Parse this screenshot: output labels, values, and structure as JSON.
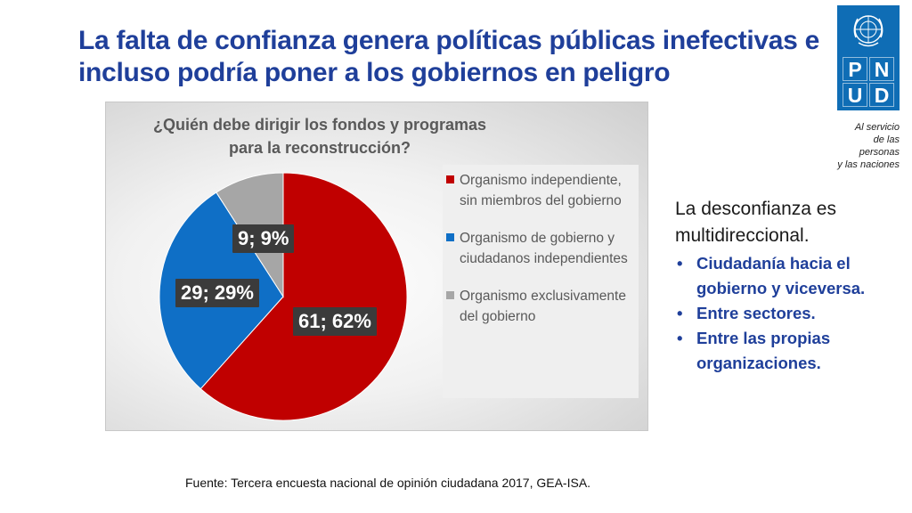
{
  "slide": {
    "title": "La falta de confianza genera políticas públicas inefectivas e incluso podría poner a los gobiernos en peligro"
  },
  "logo": {
    "letters": [
      "P",
      "N",
      "U",
      "D"
    ],
    "tagline": "Al servicio\nde las personas\ny las naciones",
    "emblem_icon": "un-emblem-icon",
    "brand_color": "#0f6db5"
  },
  "chart_data": {
    "type": "pie",
    "title": "¿Quién debe dirigir los fondos y programas para la reconstrucción?",
    "slices": [
      {
        "label": "Organismo independiente, sin miembros del gobierno",
        "value": 61,
        "percent": 62,
        "data_label": "61; 62%",
        "color": "#c00000"
      },
      {
        "label": "Organismo de gobierno y ciudadanos independientes",
        "value": 29,
        "percent": 29,
        "data_label": "29; 29%",
        "color": "#0f6fc6"
      },
      {
        "label": "Organismo exclusivamente del gobierno",
        "value": 9,
        "percent": 9,
        "data_label": "9; 9%",
        "color": "#a6a6a6"
      }
    ],
    "legend_position": "right"
  },
  "side": {
    "intro": "La desconfianza es multidireccional.",
    "bullets": [
      "Ciudadanía hacia el gobierno y viceversa.",
      "Entre sectores.",
      "Entre las propias organizaciones."
    ]
  },
  "source": "Fuente: Tercera encuesta nacional de opinión ciudadana 2017, GEA-ISA."
}
